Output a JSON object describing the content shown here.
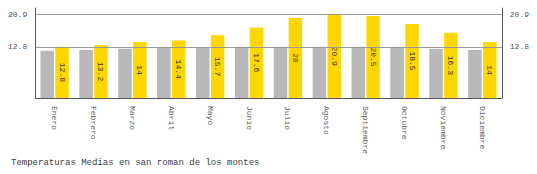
{
  "chart_data": {
    "type": "bar",
    "title": "Temperaturas Medias en san roman de los montes",
    "categories": [
      "Enero",
      "Febrero",
      "Marzo",
      "Abril",
      "Mayo",
      "Junio",
      "Julio",
      "Agosto",
      "Septiembre",
      "Octubre",
      "Noviembre",
      "Diciembre"
    ],
    "series": [
      {
        "color": "#B8B8B8",
        "values": [
          11.8,
          12.0,
          12.3,
          12.5,
          12.5,
          12.8,
          12.8,
          12.8,
          12.8,
          12.8,
          12.3,
          12.0
        ]
      },
      {
        "color": "#FFD700",
        "data_labels": true,
        "values": [
          12.8,
          13.2,
          14.0,
          14.4,
          15.7,
          17.6,
          20.0,
          20.9,
          20.5,
          18.5,
          16.3,
          14.0
        ]
      }
    ],
    "ylim": [
      0,
      22.5
    ],
    "yticks": [
      12.8,
      20.9
    ],
    "y2lim": [
      0,
      22.5
    ],
    "y2ticks": [
      12.8,
      20.9
    ],
    "grid": true
  }
}
